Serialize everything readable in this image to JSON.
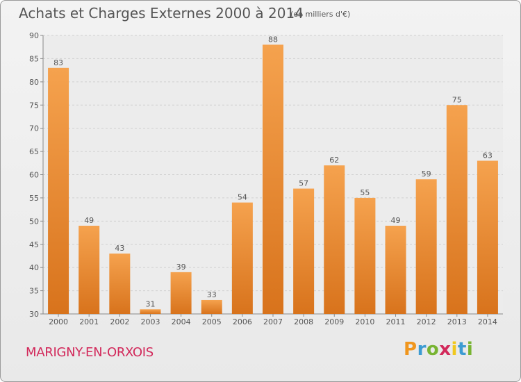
{
  "header": {
    "title": "Achats et Charges Externes 2000 à 2014",
    "subtitle": "(en milliers d'€)"
  },
  "footer": {
    "commune": "MARIGNY-EN-ORXOIS",
    "brand": "Proxiti",
    "brand_letters": [
      {
        "ch": "P",
        "color": "#f0961e"
      },
      {
        "ch": "r",
        "color": "#3c9bd2"
      },
      {
        "ch": "o",
        "color": "#78b432"
      },
      {
        "ch": "x",
        "color": "#d2285a"
      },
      {
        "ch": "i",
        "color": "#f0c81e"
      },
      {
        "ch": "t",
        "color": "#3c9bd2"
      },
      {
        "ch": "i",
        "color": "#78b432"
      }
    ]
  },
  "chart_data": {
    "type": "bar",
    "categories": [
      "2000",
      "2001",
      "2002",
      "2003",
      "2004",
      "2005",
      "2006",
      "2007",
      "2008",
      "2009",
      "2010",
      "2011",
      "2012",
      "2013",
      "2014"
    ],
    "values": [
      83,
      49,
      43,
      31,
      39,
      33,
      54,
      88,
      57,
      62,
      55,
      49,
      59,
      75,
      63
    ],
    "data_labels": [
      "83",
      "49",
      "43",
      "31",
      "39",
      "33",
      "54",
      "88",
      "57",
      "62",
      "55",
      "49",
      "59",
      "75",
      "63"
    ],
    "ylim": [
      30,
      90
    ],
    "yticks": [
      30,
      35,
      40,
      45,
      50,
      55,
      60,
      65,
      70,
      75,
      80,
      85,
      90
    ],
    "ytick_labels": [
      "30",
      "35",
      "40",
      "45",
      "50",
      "55",
      "60",
      "65",
      "70",
      "75",
      "80",
      "85",
      "90"
    ],
    "grid": true,
    "bar_color_top": "#f5a24e",
    "bar_color_bottom": "#d8731c"
  }
}
